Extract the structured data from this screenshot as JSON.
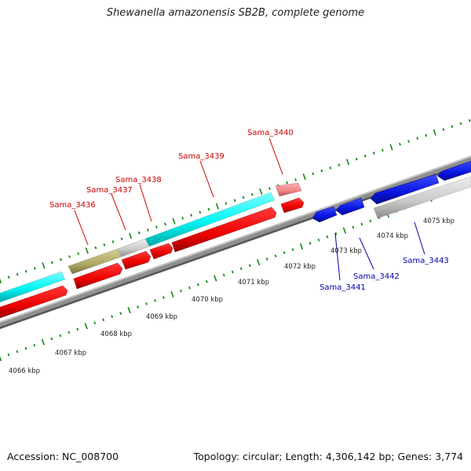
{
  "title": "Shewanella amazonensis SB2B, complete genome",
  "footer": {
    "accession": "Accession: NC_008700",
    "summary": "Topology: circular; Length: 4,306,142 bp; Genes: 3,774"
  },
  "colors": {
    "forward_gene_label": "#cc0000",
    "reverse_gene_label": "#0000aa",
    "cds_red": "#ee0000",
    "cds_blue": "#0a16e0",
    "rna_cyan": "#00f4f4",
    "olive": "#b0a866",
    "gray_feature": "#c8c8c8",
    "pink_feature": "#ee8585",
    "backbone": "#888888",
    "tick": "#118811"
  },
  "scale_labels": [
    {
      "id": "kbp-4066",
      "text": "4066 kbp"
    },
    {
      "id": "kbp-4067",
      "text": "4067 kbp"
    },
    {
      "id": "kbp-4068",
      "text": "4068 kbp"
    },
    {
      "id": "kbp-4069",
      "text": "4069 kbp"
    },
    {
      "id": "kbp-4070",
      "text": "4070 kbp"
    },
    {
      "id": "kbp-4071",
      "text": "4071 kbp"
    },
    {
      "id": "kbp-4072",
      "text": "4072 kbp"
    },
    {
      "id": "kbp-4073",
      "text": "4073 kbp"
    },
    {
      "id": "kbp-4074",
      "text": "4074 kbp"
    },
    {
      "id": "kbp-4075",
      "text": "4075 kbp"
    }
  ],
  "gene_labels": [
    {
      "id": "sama-3436",
      "text": "Sama_3436",
      "strand": "forward"
    },
    {
      "id": "sama-3437",
      "text": "Sama_3437",
      "strand": "forward"
    },
    {
      "id": "sama-3438",
      "text": "Sama_3438",
      "strand": "forward"
    },
    {
      "id": "sama-3439",
      "text": "Sama_3439",
      "strand": "forward"
    },
    {
      "id": "sama-3440",
      "text": "Sama_3440",
      "strand": "forward"
    },
    {
      "id": "sama-3441",
      "text": "Sama_3441",
      "strand": "reverse"
    },
    {
      "id": "sama-3442",
      "text": "Sama_3442",
      "strand": "reverse"
    },
    {
      "id": "sama-3443",
      "text": "Sama_3443",
      "strand": "reverse"
    }
  ]
}
